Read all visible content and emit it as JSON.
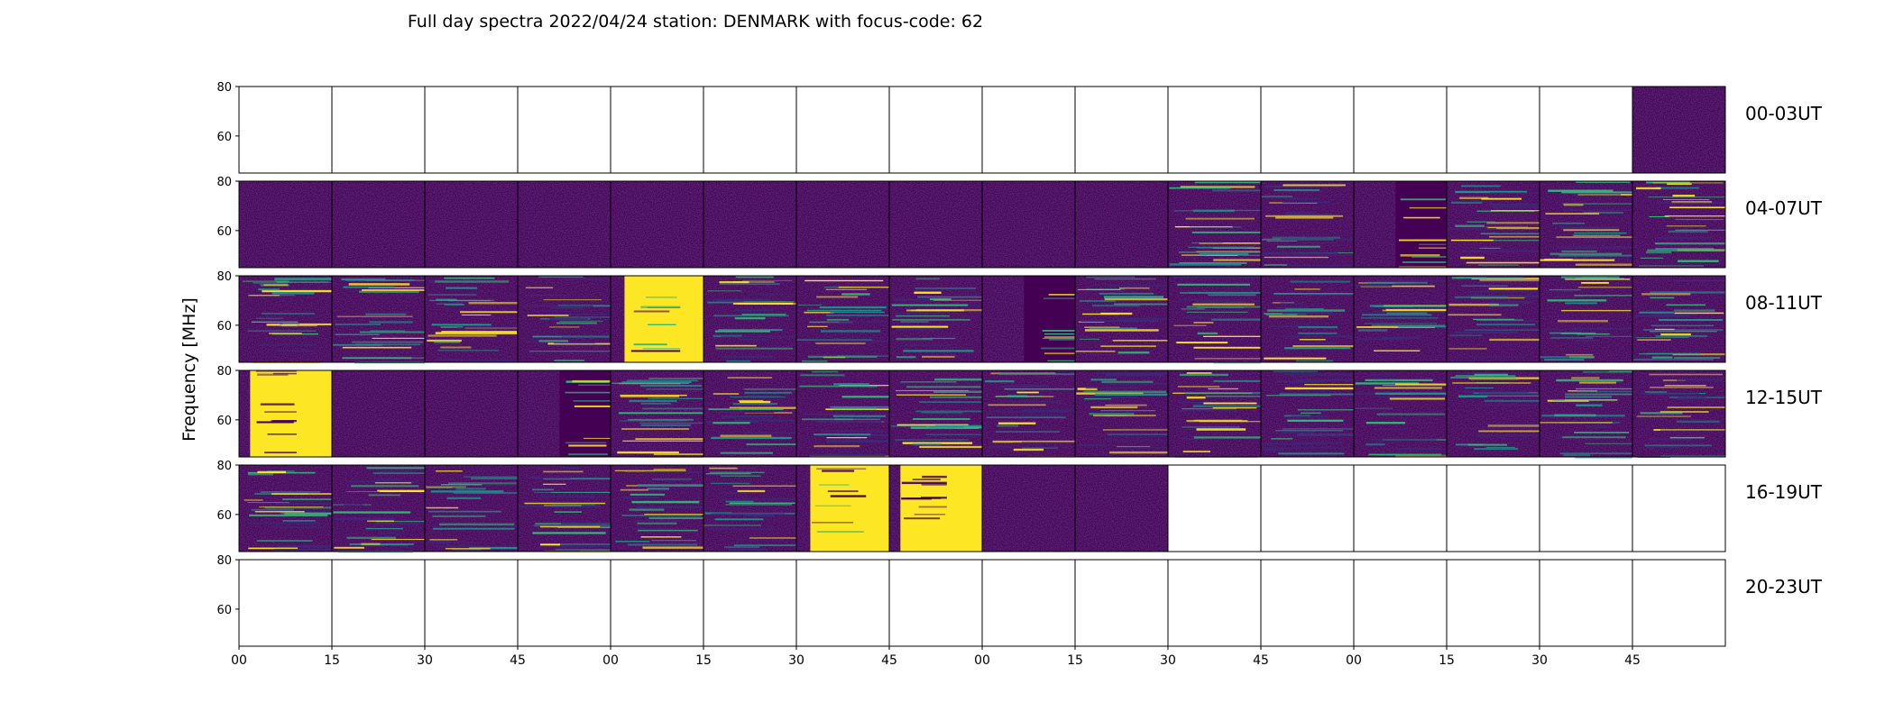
{
  "chart_data": {
    "type": "heatmap",
    "title": "Full day spectra 2022/04/24 station: DENMARK with focus-code: 62",
    "ylabel": "Frequency [MHz]",
    "ylim": [
      45,
      80
    ],
    "yticks": [
      "80",
      "60"
    ],
    "xticks": [
      "00",
      "15",
      "30",
      "45",
      "00",
      "15",
      "30",
      "45",
      "00",
      "15",
      "30",
      "45",
      "00",
      "15",
      "30",
      "45"
    ],
    "colormap": "viridis",
    "colors": {
      "background": "#440154",
      "low": "#3b2b7a",
      "mid": "#21918c",
      "high": "#35b779",
      "saturated": "#fde725"
    },
    "row_labels": [
      "00-03UT",
      "04-07UT",
      "08-11UT",
      "12-15UT",
      "16-19UT",
      "20-23UT"
    ],
    "cells": [
      [
        "empty",
        "empty",
        "empty",
        "empty",
        "empty",
        "empty",
        "empty",
        "empty",
        "empty",
        "empty",
        "empty",
        "empty",
        "empty",
        "empty",
        "empty",
        "quiet"
      ],
      [
        "quiet",
        "quiet",
        "quiet",
        "quiet",
        "quiet",
        "quiet",
        "quiet",
        "quiet",
        "quiet",
        "quiet",
        "rfi-lines",
        "busy",
        "rfi-partial",
        "busy",
        "busy",
        "busy"
      ],
      [
        "busy",
        "rfi-lines",
        "busy",
        "busy",
        "burst-partial",
        "busy",
        "busy",
        "busy",
        "rfi-partial",
        "busy",
        "busy",
        "busy",
        "busy",
        "busy",
        "busy",
        "busy"
      ],
      [
        "burst-full",
        "quiet",
        "quiet",
        "rfi-partial",
        "rfi-lines",
        "busy",
        "busy",
        "rfi-lines",
        "busy",
        "busy",
        "busy",
        "busy",
        "busy",
        "busy",
        "busy",
        "busy"
      ],
      [
        "busy",
        "busy",
        "busy",
        "busy",
        "busy",
        "busy",
        "burst-partial",
        "burst-full",
        "quiet",
        "quiet",
        "empty",
        "empty",
        "empty",
        "empty",
        "empty",
        "empty"
      ],
      [
        "empty",
        "empty",
        "empty",
        "empty",
        "empty",
        "empty",
        "empty",
        "empty",
        "empty",
        "empty",
        "empty",
        "empty",
        "empty",
        "empty",
        "empty",
        "empty"
      ]
    ]
  }
}
